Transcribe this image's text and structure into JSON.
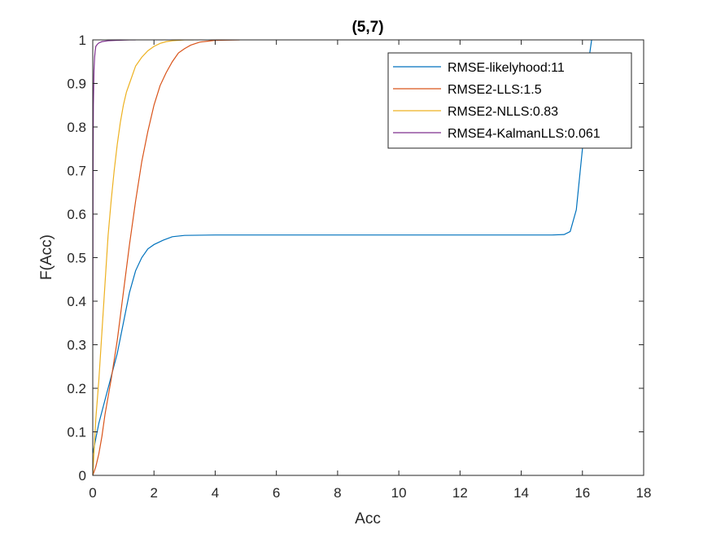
{
  "chart_data": {
    "type": "line",
    "title": "(5,7)",
    "xlabel": "Acc",
    "ylabel": "F(Acc)",
    "xlim": [
      0,
      18
    ],
    "ylim": [
      0,
      1
    ],
    "xticks": [
      0,
      2,
      4,
      6,
      8,
      10,
      12,
      14,
      16,
      18
    ],
    "yticks": [
      0,
      0.1,
      0.2,
      0.3,
      0.4,
      0.5,
      0.6,
      0.7,
      0.8,
      0.9,
      1
    ],
    "xtick_labels": [
      "0",
      "2",
      "4",
      "6",
      "8",
      "10",
      "12",
      "14",
      "16",
      "18"
    ],
    "ytick_labels": [
      "0",
      "0.1",
      "0.2",
      "0.3",
      "0.4",
      "0.5",
      "0.6",
      "0.7",
      "0.8",
      "0.9",
      "1"
    ],
    "grid": false,
    "legend_position": "top-right",
    "series": [
      {
        "name": "RMSE-likelyhood:11",
        "color": "#0072BD",
        "x": [
          0,
          0.2,
          0.5,
          0.8,
          1.0,
          1.2,
          1.4,
          1.6,
          1.8,
          2.0,
          2.3,
          2.6,
          3.0,
          4.0,
          8.0,
          12.0,
          15.0,
          15.4,
          15.6,
          15.8,
          16.0,
          16.1,
          16.2,
          16.3
        ],
        "y": [
          0.05,
          0.12,
          0.2,
          0.28,
          0.35,
          0.42,
          0.47,
          0.5,
          0.52,
          0.53,
          0.54,
          0.548,
          0.551,
          0.552,
          0.552,
          0.552,
          0.552,
          0.553,
          0.56,
          0.61,
          0.75,
          0.85,
          0.95,
          1.0
        ]
      },
      {
        "name": "RMSE2-LLS:1.5",
        "color": "#D95319",
        "x": [
          0,
          0.1,
          0.2,
          0.3,
          0.4,
          0.6,
          0.8,
          1.0,
          1.2,
          1.4,
          1.6,
          1.8,
          2.0,
          2.2,
          2.4,
          2.6,
          2.8,
          3.0,
          3.2,
          3.5,
          4.0,
          4.8
        ],
        "y": [
          0,
          0.02,
          0.05,
          0.09,
          0.14,
          0.22,
          0.31,
          0.42,
          0.53,
          0.63,
          0.72,
          0.79,
          0.85,
          0.895,
          0.925,
          0.95,
          0.97,
          0.98,
          0.988,
          0.995,
          0.999,
          1.0
        ]
      },
      {
        "name": "RMSE2-NLLS:0.83",
        "color": "#EDB120",
        "x": [
          0,
          0.1,
          0.2,
          0.3,
          0.4,
          0.5,
          0.6,
          0.7,
          0.8,
          0.9,
          1.0,
          1.1,
          1.2,
          1.4,
          1.6,
          1.8,
          2.0,
          2.2,
          2.4,
          2.6,
          3.0,
          3.3
        ],
        "y": [
          0,
          0.13,
          0.22,
          0.33,
          0.44,
          0.55,
          0.63,
          0.7,
          0.76,
          0.81,
          0.85,
          0.88,
          0.9,
          0.94,
          0.96,
          0.975,
          0.985,
          0.992,
          0.996,
          0.998,
          1.0,
          1.0
        ]
      },
      {
        "name": "RMSE4-KalmanLLS:0.061",
        "color": "#7E2F8E",
        "x": [
          0,
          0.01,
          0.02,
          0.04,
          0.06,
          0.08,
          0.1,
          0.15,
          0.2,
          0.3,
          0.5,
          0.8,
          1.2,
          1.4
        ],
        "y": [
          0.3,
          0.7,
          0.85,
          0.93,
          0.96,
          0.975,
          0.985,
          0.99,
          0.993,
          0.996,
          0.998,
          0.999,
          1.0,
          1.0
        ]
      }
    ]
  }
}
